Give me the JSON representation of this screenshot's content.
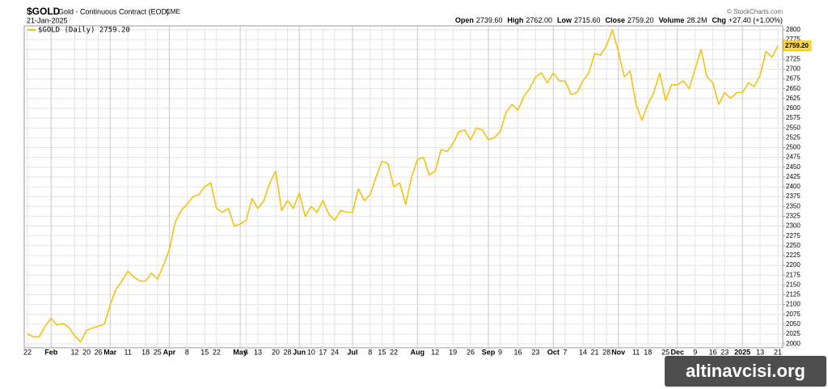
{
  "chart_data": {
    "type": "line",
    "symbol": "$GOLD",
    "title": "Gold - Continuous Contract (EOD)",
    "exchange": "CME",
    "date": "21-Jan-2025",
    "source": "© StockCharts.com",
    "quote": [
      {
        "label": "Open",
        "value": "2739.60"
      },
      {
        "label": "High",
        "value": "2762.00"
      },
      {
        "label": "Low",
        "value": "2715.60"
      },
      {
        "label": "Close",
        "value": "2759.20"
      },
      {
        "label": "Volume",
        "value": "28.2M"
      },
      {
        "label": "Chg",
        "value": "+27.40 (+1.00%)"
      }
    ],
    "last_label": "2759.20",
    "watermark": "altinavcisi.org",
    "categories": [
      "22",
      null,
      null,
      null,
      "Feb",
      null,
      null,
      null,
      "12",
      null,
      "20",
      null,
      "26",
      null,
      "Mar",
      null,
      null,
      "11",
      null,
      null,
      "18",
      null,
      "25",
      null,
      "Apr",
      null,
      null,
      "8",
      null,
      null,
      "15",
      null,
      "22",
      null,
      null,
      null,
      "May",
      "6",
      null,
      "13",
      null,
      null,
      "20",
      null,
      "28",
      null,
      "Jun",
      null,
      "10",
      null,
      "17",
      null,
      "24",
      null,
      null,
      "Jul",
      null,
      null,
      "8",
      null,
      "15",
      null,
      "22",
      null,
      null,
      null,
      "Aug",
      null,
      null,
      "12",
      null,
      null,
      "19",
      null,
      null,
      "26",
      null,
      null,
      "Sep",
      null,
      "9",
      null,
      null,
      "16",
      null,
      null,
      "23",
      null,
      null,
      "Oct",
      null,
      "7",
      null,
      null,
      "14",
      null,
      "21",
      null,
      "28",
      null,
      "Nov",
      null,
      null,
      "11",
      null,
      "18",
      null,
      null,
      "25",
      null,
      "Dec",
      null,
      null,
      "9",
      null,
      null,
      "16",
      null,
      "23",
      null,
      null,
      "2025",
      null,
      null,
      "13",
      null,
      null,
      "21"
    ],
    "series": [
      {
        "name": "$GOLD (Daily) 2759.20",
        "color": "#f5c211",
        "values": [
          2025,
          2018,
          2018,
          2045,
          2065,
          2048,
          2052,
          2042,
          2020,
          2005,
          2035,
          2040,
          2045,
          2050,
          2100,
          2140,
          2160,
          2185,
          2170,
          2160,
          2160,
          2180,
          2165,
          2200,
          2240,
          2310,
          2340,
          2355,
          2375,
          2380,
          2400,
          2410,
          2345,
          2335,
          2345,
          2300,
          2305,
          2315,
          2370,
          2345,
          2365,
          2410,
          2440,
          2340,
          2365,
          2345,
          2385,
          2325,
          2350,
          2335,
          2365,
          2330,
          2315,
          2340,
          2335,
          2335,
          2395,
          2365,
          2380,
          2425,
          2465,
          2460,
          2400,
          2410,
          2355,
          2425,
          2470,
          2475,
          2430,
          2440,
          2495,
          2490,
          2510,
          2540,
          2545,
          2520,
          2550,
          2545,
          2520,
          2525,
          2540,
          2590,
          2610,
          2595,
          2630,
          2650,
          2680,
          2690,
          2665,
          2690,
          2670,
          2670,
          2635,
          2640,
          2670,
          2690,
          2740,
          2735,
          2760,
          2800,
          2745,
          2680,
          2695,
          2610,
          2570,
          2610,
          2640,
          2690,
          2620,
          2660,
          2660,
          2670,
          2650,
          2700,
          2750,
          2680,
          2665,
          2610,
          2640,
          2625,
          2640,
          2640,
          2665,
          2655,
          2685,
          2745,
          2730,
          2759.2
        ]
      }
    ],
    "ylim": [
      1990,
      2810
    ],
    "yticks": [
      2000,
      2025,
      2050,
      2075,
      2100,
      2125,
      2150,
      2175,
      2200,
      2225,
      2250,
      2275,
      2300,
      2325,
      2350,
      2375,
      2400,
      2425,
      2450,
      2475,
      2500,
      2525,
      2550,
      2575,
      2600,
      2625,
      2650,
      2675,
      2700,
      2725,
      2750,
      2775,
      2800
    ],
    "grid": true
  }
}
